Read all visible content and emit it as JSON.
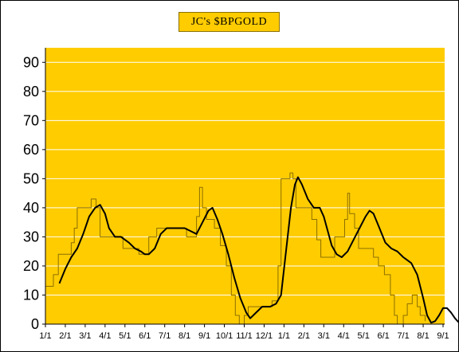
{
  "chart_data": {
    "type": "line",
    "title": "JC's $BPGOLD",
    "xlabel": "",
    "ylabel": "",
    "ylim": [
      0,
      95
    ],
    "yticks": [
      0,
      10,
      20,
      30,
      40,
      50,
      60,
      70,
      80,
      90
    ],
    "xticks": [
      "1/1",
      "2/1",
      "3/1",
      "4/1",
      "5/1",
      "6/1",
      "7/1",
      "8/1",
      "9/1",
      "10/1",
      "11/1",
      "12/1",
      "1/1",
      "2/1",
      "3/1",
      "4/1",
      "5/1",
      "6/1",
      "7/1",
      "8/1",
      "9/1"
    ],
    "grid": true,
    "legend": "none",
    "colors": {
      "plot_bg": "#ffcc00",
      "step_line": "#8b6f00",
      "smooth_line": "#000000",
      "grid": "#ffffff"
    },
    "series": [
      {
        "style": "step",
        "points": [
          [
            0.0,
            13
          ],
          [
            0.4,
            13
          ],
          [
            0.4,
            17
          ],
          [
            0.65,
            17
          ],
          [
            0.65,
            24
          ],
          [
            1.3,
            24
          ],
          [
            1.3,
            28
          ],
          [
            1.45,
            28
          ],
          [
            1.45,
            33
          ],
          [
            1.6,
            33
          ],
          [
            1.6,
            40
          ],
          [
            2.3,
            40
          ],
          [
            2.3,
            43
          ],
          [
            2.55,
            43
          ],
          [
            2.55,
            40
          ],
          [
            2.75,
            40
          ],
          [
            2.75,
            30
          ],
          [
            3.9,
            30
          ],
          [
            3.9,
            26
          ],
          [
            4.7,
            26
          ],
          [
            4.7,
            24
          ],
          [
            5.2,
            24
          ],
          [
            5.2,
            30
          ],
          [
            5.6,
            30
          ],
          [
            5.6,
            33
          ],
          [
            7.1,
            33
          ],
          [
            7.1,
            30
          ],
          [
            7.6,
            30
          ],
          [
            7.6,
            37
          ],
          [
            7.75,
            37
          ],
          [
            7.75,
            47
          ],
          [
            7.9,
            47
          ],
          [
            7.9,
            40
          ],
          [
            8.1,
            40
          ],
          [
            8.1,
            36
          ],
          [
            8.5,
            36
          ],
          [
            8.5,
            33
          ],
          [
            8.8,
            33
          ],
          [
            8.8,
            27
          ],
          [
            9.1,
            27
          ],
          [
            9.1,
            20
          ],
          [
            9.35,
            20
          ],
          [
            9.35,
            10
          ],
          [
            9.55,
            10
          ],
          [
            9.55,
            3
          ],
          [
            9.75,
            3
          ],
          [
            9.75,
            0
          ],
          [
            10.0,
            0
          ],
          [
            10.0,
            3
          ],
          [
            10.2,
            3
          ],
          [
            10.2,
            6
          ],
          [
            11.4,
            6
          ],
          [
            11.4,
            8
          ],
          [
            11.7,
            8
          ],
          [
            11.7,
            20
          ],
          [
            11.85,
            20
          ],
          [
            11.85,
            50
          ],
          [
            12.3,
            50
          ],
          [
            12.3,
            52
          ],
          [
            12.45,
            52
          ],
          [
            12.45,
            50
          ],
          [
            12.6,
            50
          ],
          [
            12.6,
            40
          ],
          [
            13.4,
            40
          ],
          [
            13.4,
            36
          ],
          [
            13.65,
            36
          ],
          [
            13.65,
            29
          ],
          [
            13.85,
            29
          ],
          [
            13.85,
            23
          ],
          [
            14.55,
            23
          ],
          [
            14.55,
            30
          ],
          [
            15.05,
            30
          ],
          [
            15.05,
            36
          ],
          [
            15.2,
            36
          ],
          [
            15.2,
            45
          ],
          [
            15.3,
            45
          ],
          [
            15.3,
            38
          ],
          [
            15.55,
            38
          ],
          [
            15.55,
            33
          ],
          [
            15.75,
            33
          ],
          [
            15.75,
            26
          ],
          [
            16.5,
            26
          ],
          [
            16.5,
            23
          ],
          [
            16.75,
            23
          ],
          [
            16.75,
            20
          ],
          [
            17.05,
            20
          ],
          [
            17.05,
            17
          ],
          [
            17.35,
            17
          ],
          [
            17.35,
            10
          ],
          [
            17.55,
            10
          ],
          [
            17.55,
            3
          ],
          [
            17.7,
            3
          ],
          [
            17.7,
            0
          ],
          [
            18.0,
            0
          ],
          [
            18.0,
            3
          ],
          [
            18.2,
            3
          ],
          [
            18.2,
            7
          ],
          [
            18.45,
            7
          ],
          [
            18.45,
            10
          ],
          [
            18.7,
            10
          ],
          [
            18.7,
            6
          ],
          [
            18.85,
            6
          ],
          [
            18.85,
            3
          ],
          [
            19.1,
            3
          ],
          [
            19.1,
            1
          ]
        ]
      },
      {
        "style": "smooth",
        "points": [
          [
            0.7,
            14
          ],
          [
            1.0,
            19
          ],
          [
            1.3,
            23
          ],
          [
            1.6,
            26
          ],
          [
            1.9,
            31
          ],
          [
            2.2,
            37
          ],
          [
            2.5,
            40
          ],
          [
            2.75,
            41
          ],
          [
            3.0,
            38
          ],
          [
            3.2,
            33
          ],
          [
            3.5,
            30
          ],
          [
            3.8,
            30
          ],
          [
            4.2,
            28
          ],
          [
            4.5,
            26
          ],
          [
            4.8,
            25
          ],
          [
            5.0,
            24
          ],
          [
            5.2,
            24
          ],
          [
            5.5,
            26
          ],
          [
            5.8,
            31
          ],
          [
            6.1,
            33
          ],
          [
            6.5,
            33
          ],
          [
            7.0,
            33
          ],
          [
            7.3,
            32
          ],
          [
            7.6,
            31
          ],
          [
            7.9,
            35
          ],
          [
            8.2,
            39
          ],
          [
            8.4,
            40
          ],
          [
            8.65,
            36
          ],
          [
            8.9,
            31
          ],
          [
            9.2,
            24
          ],
          [
            9.5,
            16
          ],
          [
            9.8,
            9
          ],
          [
            10.1,
            4
          ],
          [
            10.3,
            2
          ],
          [
            10.6,
            4
          ],
          [
            10.9,
            6
          ],
          [
            11.3,
            6
          ],
          [
            11.6,
            7
          ],
          [
            11.85,
            10
          ],
          [
            12.1,
            25
          ],
          [
            12.35,
            40
          ],
          [
            12.55,
            48
          ],
          [
            12.7,
            50.5
          ],
          [
            12.9,
            48
          ],
          [
            13.2,
            43
          ],
          [
            13.5,
            40
          ],
          [
            13.8,
            40
          ],
          [
            14.0,
            37
          ],
          [
            14.2,
            32
          ],
          [
            14.4,
            27
          ],
          [
            14.65,
            24
          ],
          [
            14.9,
            23
          ],
          [
            15.2,
            25
          ],
          [
            15.5,
            29
          ],
          [
            15.8,
            33
          ],
          [
            16.1,
            37
          ],
          [
            16.3,
            39
          ],
          [
            16.5,
            38
          ],
          [
            16.8,
            33
          ],
          [
            17.1,
            28
          ],
          [
            17.4,
            26
          ],
          [
            17.7,
            25
          ],
          [
            18.0,
            23
          ],
          [
            18.4,
            21
          ],
          [
            18.7,
            17
          ],
          [
            19.0,
            9
          ],
          [
            19.2,
            3
          ],
          [
            19.4,
            0.5
          ],
          [
            19.6,
            1
          ],
          [
            19.8,
            3
          ],
          [
            20.0,
            5.5
          ],
          [
            20.2,
            5.5
          ],
          [
            20.4,
            4
          ],
          [
            20.6,
            2
          ],
          [
            20.8,
            0.5
          ]
        ]
      }
    ]
  }
}
